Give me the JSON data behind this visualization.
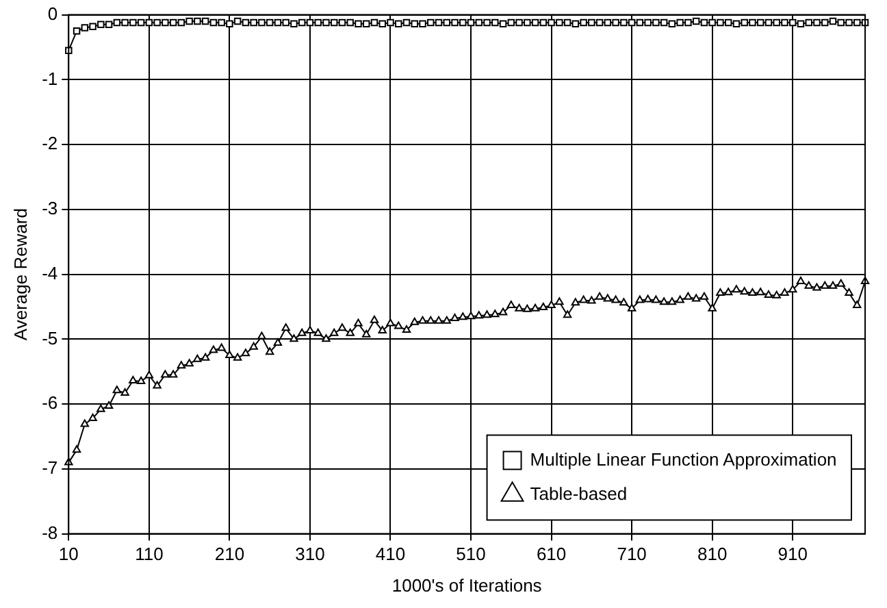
{
  "chart_data": {
    "type": "line",
    "xlabel": "1000's of Iterations",
    "ylabel": "Average Reward",
    "categories": [
      "10",
      null,
      null,
      null,
      null,
      null,
      null,
      null,
      null,
      null,
      "110",
      null,
      null,
      null,
      null,
      null,
      null,
      null,
      null,
      null,
      "210",
      null,
      null,
      null,
      null,
      null,
      null,
      null,
      null,
      null,
      "310",
      null,
      null,
      null,
      null,
      null,
      null,
      null,
      null,
      null,
      "410",
      null,
      null,
      null,
      null,
      null,
      null,
      null,
      null,
      null,
      "510",
      null,
      null,
      null,
      null,
      null,
      null,
      null,
      null,
      null,
      "610",
      null,
      null,
      null,
      null,
      null,
      null,
      null,
      null,
      null,
      "710",
      null,
      null,
      null,
      null,
      null,
      null,
      null,
      null,
      null,
      "810",
      null,
      null,
      null,
      null,
      null,
      null,
      null,
      null,
      null,
      "910",
      null,
      null,
      null,
      null,
      null,
      null,
      null,
      null,
      null
    ],
    "series": [
      {
        "name": "Multiple Linear Function Approximation",
        "color": "#000000",
        "marker": "square",
        "values": [
          -0.55,
          -0.25,
          -0.2,
          -0.18,
          -0.15,
          -0.15,
          -0.12,
          -0.12,
          -0.12,
          -0.12,
          -0.12,
          -0.12,
          -0.12,
          -0.12,
          -0.12,
          -0.1,
          -0.1,
          -0.1,
          -0.12,
          -0.12,
          -0.14,
          -0.1,
          -0.12,
          -0.12,
          -0.12,
          -0.12,
          -0.12,
          -0.12,
          -0.14,
          -0.12,
          -0.12,
          -0.12,
          -0.12,
          -0.12,
          -0.12,
          -0.12,
          -0.14,
          -0.14,
          -0.12,
          -0.14,
          -0.12,
          -0.14,
          -0.12,
          -0.14,
          -0.14,
          -0.12,
          -0.12,
          -0.12,
          -0.12,
          -0.12,
          -0.12,
          -0.12,
          -0.12,
          -0.12,
          -0.14,
          -0.12,
          -0.12,
          -0.12,
          -0.12,
          -0.12,
          -0.12,
          -0.12,
          -0.12,
          -0.14,
          -0.12,
          -0.12,
          -0.12,
          -0.12,
          -0.12,
          -0.12,
          -0.12,
          -0.12,
          -0.12,
          -0.12,
          -0.12,
          -0.14,
          -0.12,
          -0.12,
          -0.1,
          -0.12,
          -0.12,
          -0.12,
          -0.12,
          -0.14,
          -0.12,
          -0.12,
          -0.12,
          -0.12,
          -0.12,
          -0.12,
          -0.12,
          -0.14,
          -0.12,
          -0.12,
          -0.12,
          -0.1,
          -0.12,
          -0.12,
          -0.12,
          -0.12
        ]
      },
      {
        "name": "Table-based",
        "color": "#000000",
        "marker": "triangle",
        "values": [
          -6.9,
          -6.71,
          -6.31,
          -6.22,
          -6.08,
          -6.03,
          -5.79,
          -5.83,
          -5.64,
          -5.65,
          -5.56,
          -5.72,
          -5.55,
          -5.55,
          -5.41,
          -5.38,
          -5.31,
          -5.29,
          -5.17,
          -5.14,
          -5.25,
          -5.29,
          -5.22,
          -5.12,
          -4.96,
          -5.2,
          -5.06,
          -4.83,
          -5.0,
          -4.91,
          -4.87,
          -4.91,
          -5.0,
          -4.91,
          -4.83,
          -4.91,
          -4.76,
          -4.93,
          -4.71,
          -4.87,
          -4.76,
          -4.8,
          -4.86,
          -4.74,
          -4.72,
          -4.72,
          -4.72,
          -4.72,
          -4.68,
          -4.66,
          -4.65,
          -4.64,
          -4.63,
          -4.62,
          -4.59,
          -4.48,
          -4.53,
          -4.54,
          -4.53,
          -4.51,
          -4.48,
          -4.43,
          -4.63,
          -4.44,
          -4.4,
          -4.41,
          -4.35,
          -4.38,
          -4.4,
          -4.44,
          -4.53,
          -4.4,
          -4.39,
          -4.4,
          -4.43,
          -4.43,
          -4.4,
          -4.35,
          -4.38,
          -4.35,
          -4.53,
          -4.29,
          -4.28,
          -4.24,
          -4.27,
          -4.29,
          -4.28,
          -4.32,
          -4.33,
          -4.29,
          -4.24,
          -4.11,
          -4.18,
          -4.21,
          -4.18,
          -4.18,
          -4.15,
          -4.29,
          -4.48,
          -4.11
        ]
      }
    ],
    "ylim": [
      -8,
      0
    ],
    "yticks": [
      -8,
      -7,
      -6,
      -5,
      -4,
      -3,
      -2,
      -1,
      0
    ],
    "grid": true,
    "legend": "bottom right"
  }
}
